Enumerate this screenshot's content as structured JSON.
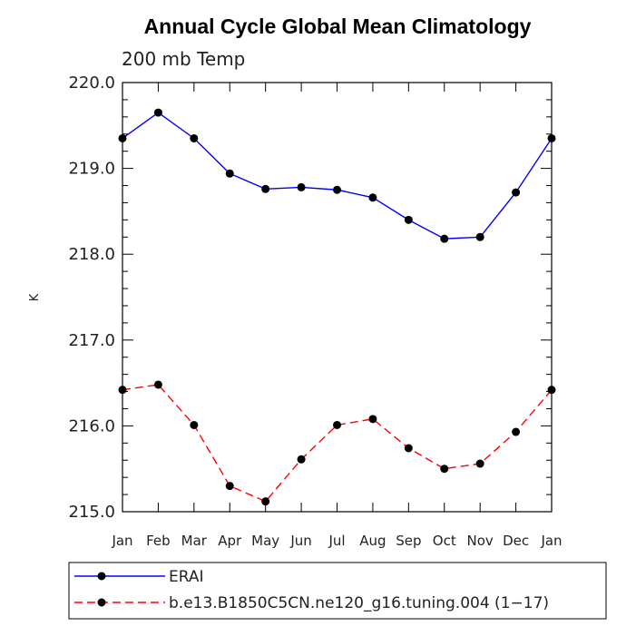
{
  "chart_data": {
    "type": "line",
    "title": "Annual Cycle Global Mean Climatology",
    "subtitle": "200 mb Temp",
    "xlabel": "",
    "ylabel": "K",
    "categories": [
      "Jan",
      "Feb",
      "Mar",
      "Apr",
      "May",
      "Jun",
      "Jul",
      "Aug",
      "Sep",
      "Oct",
      "Nov",
      "Dec",
      "Jan"
    ],
    "ylim": [
      215.0,
      220.0
    ],
    "yticks": [
      215.0,
      216.0,
      217.0,
      218.0,
      219.0,
      220.0
    ],
    "ytick_labels": [
      "215.0",
      "216.0",
      "217.0",
      "218.0",
      "219.0",
      "220.0"
    ],
    "series": [
      {
        "name": "ERAI",
        "color": "#0000ff",
        "dash": "solid",
        "values": [
          219.35,
          219.65,
          219.35,
          218.94,
          218.76,
          218.78,
          218.75,
          218.66,
          218.4,
          218.18,
          218.2,
          218.72,
          219.35
        ]
      },
      {
        "name": "b.e13.B1850C5CN.ne120_g16.tuning.004 (1−17)",
        "color": "#ff0000",
        "dash": "dashed",
        "values": [
          216.42,
          216.48,
          216.01,
          215.3,
          215.12,
          215.61,
          216.01,
          216.08,
          215.74,
          215.5,
          215.56,
          215.93,
          216.42
        ]
      }
    ],
    "legend_position": "bottom",
    "grid": false
  }
}
